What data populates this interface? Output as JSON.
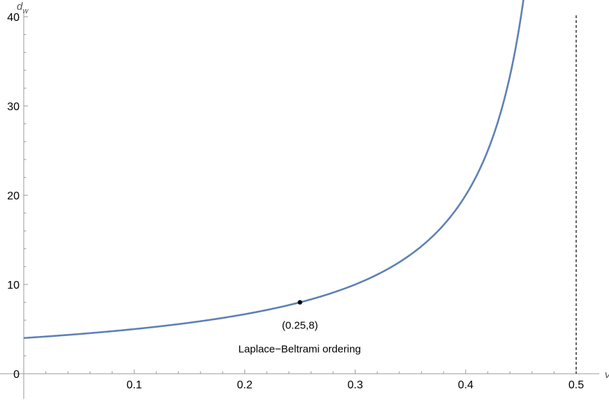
{
  "chart_data": {
    "type": "line",
    "xlabel": "ν",
    "ylabel": "d_w",
    "ylabel_main": "d",
    "ylabel_sub": "w",
    "xlim": [
      0,
      0.5
    ],
    "ylim": [
      0,
      40
    ],
    "x_ticks": [
      "0.1",
      "0.2",
      "0.3",
      "0.4",
      "0.5"
    ],
    "y_ticks": [
      "0",
      "10",
      "20",
      "30",
      "40"
    ],
    "grid": false,
    "line_color": "#5e81b5",
    "series": [
      {
        "x": [
          0.0,
          0.05,
          0.1,
          0.15,
          0.2,
          0.25,
          0.3,
          0.35,
          0.375,
          0.4,
          0.42,
          0.43,
          0.44,
          0.45,
          0.4545
        ],
        "values": [
          4.0,
          4.44,
          5.0,
          5.71,
          6.67,
          8.0,
          10.0,
          13.33,
          16.0,
          20.0,
          25.0,
          28.57,
          33.33,
          40.0,
          44.0
        ]
      }
    ],
    "asymptote_x": 0.5,
    "point": {
      "x": 0.25,
      "y": 8,
      "label": "(0.25,8)"
    },
    "annotation": "Laplace−Beltrami ordering"
  }
}
